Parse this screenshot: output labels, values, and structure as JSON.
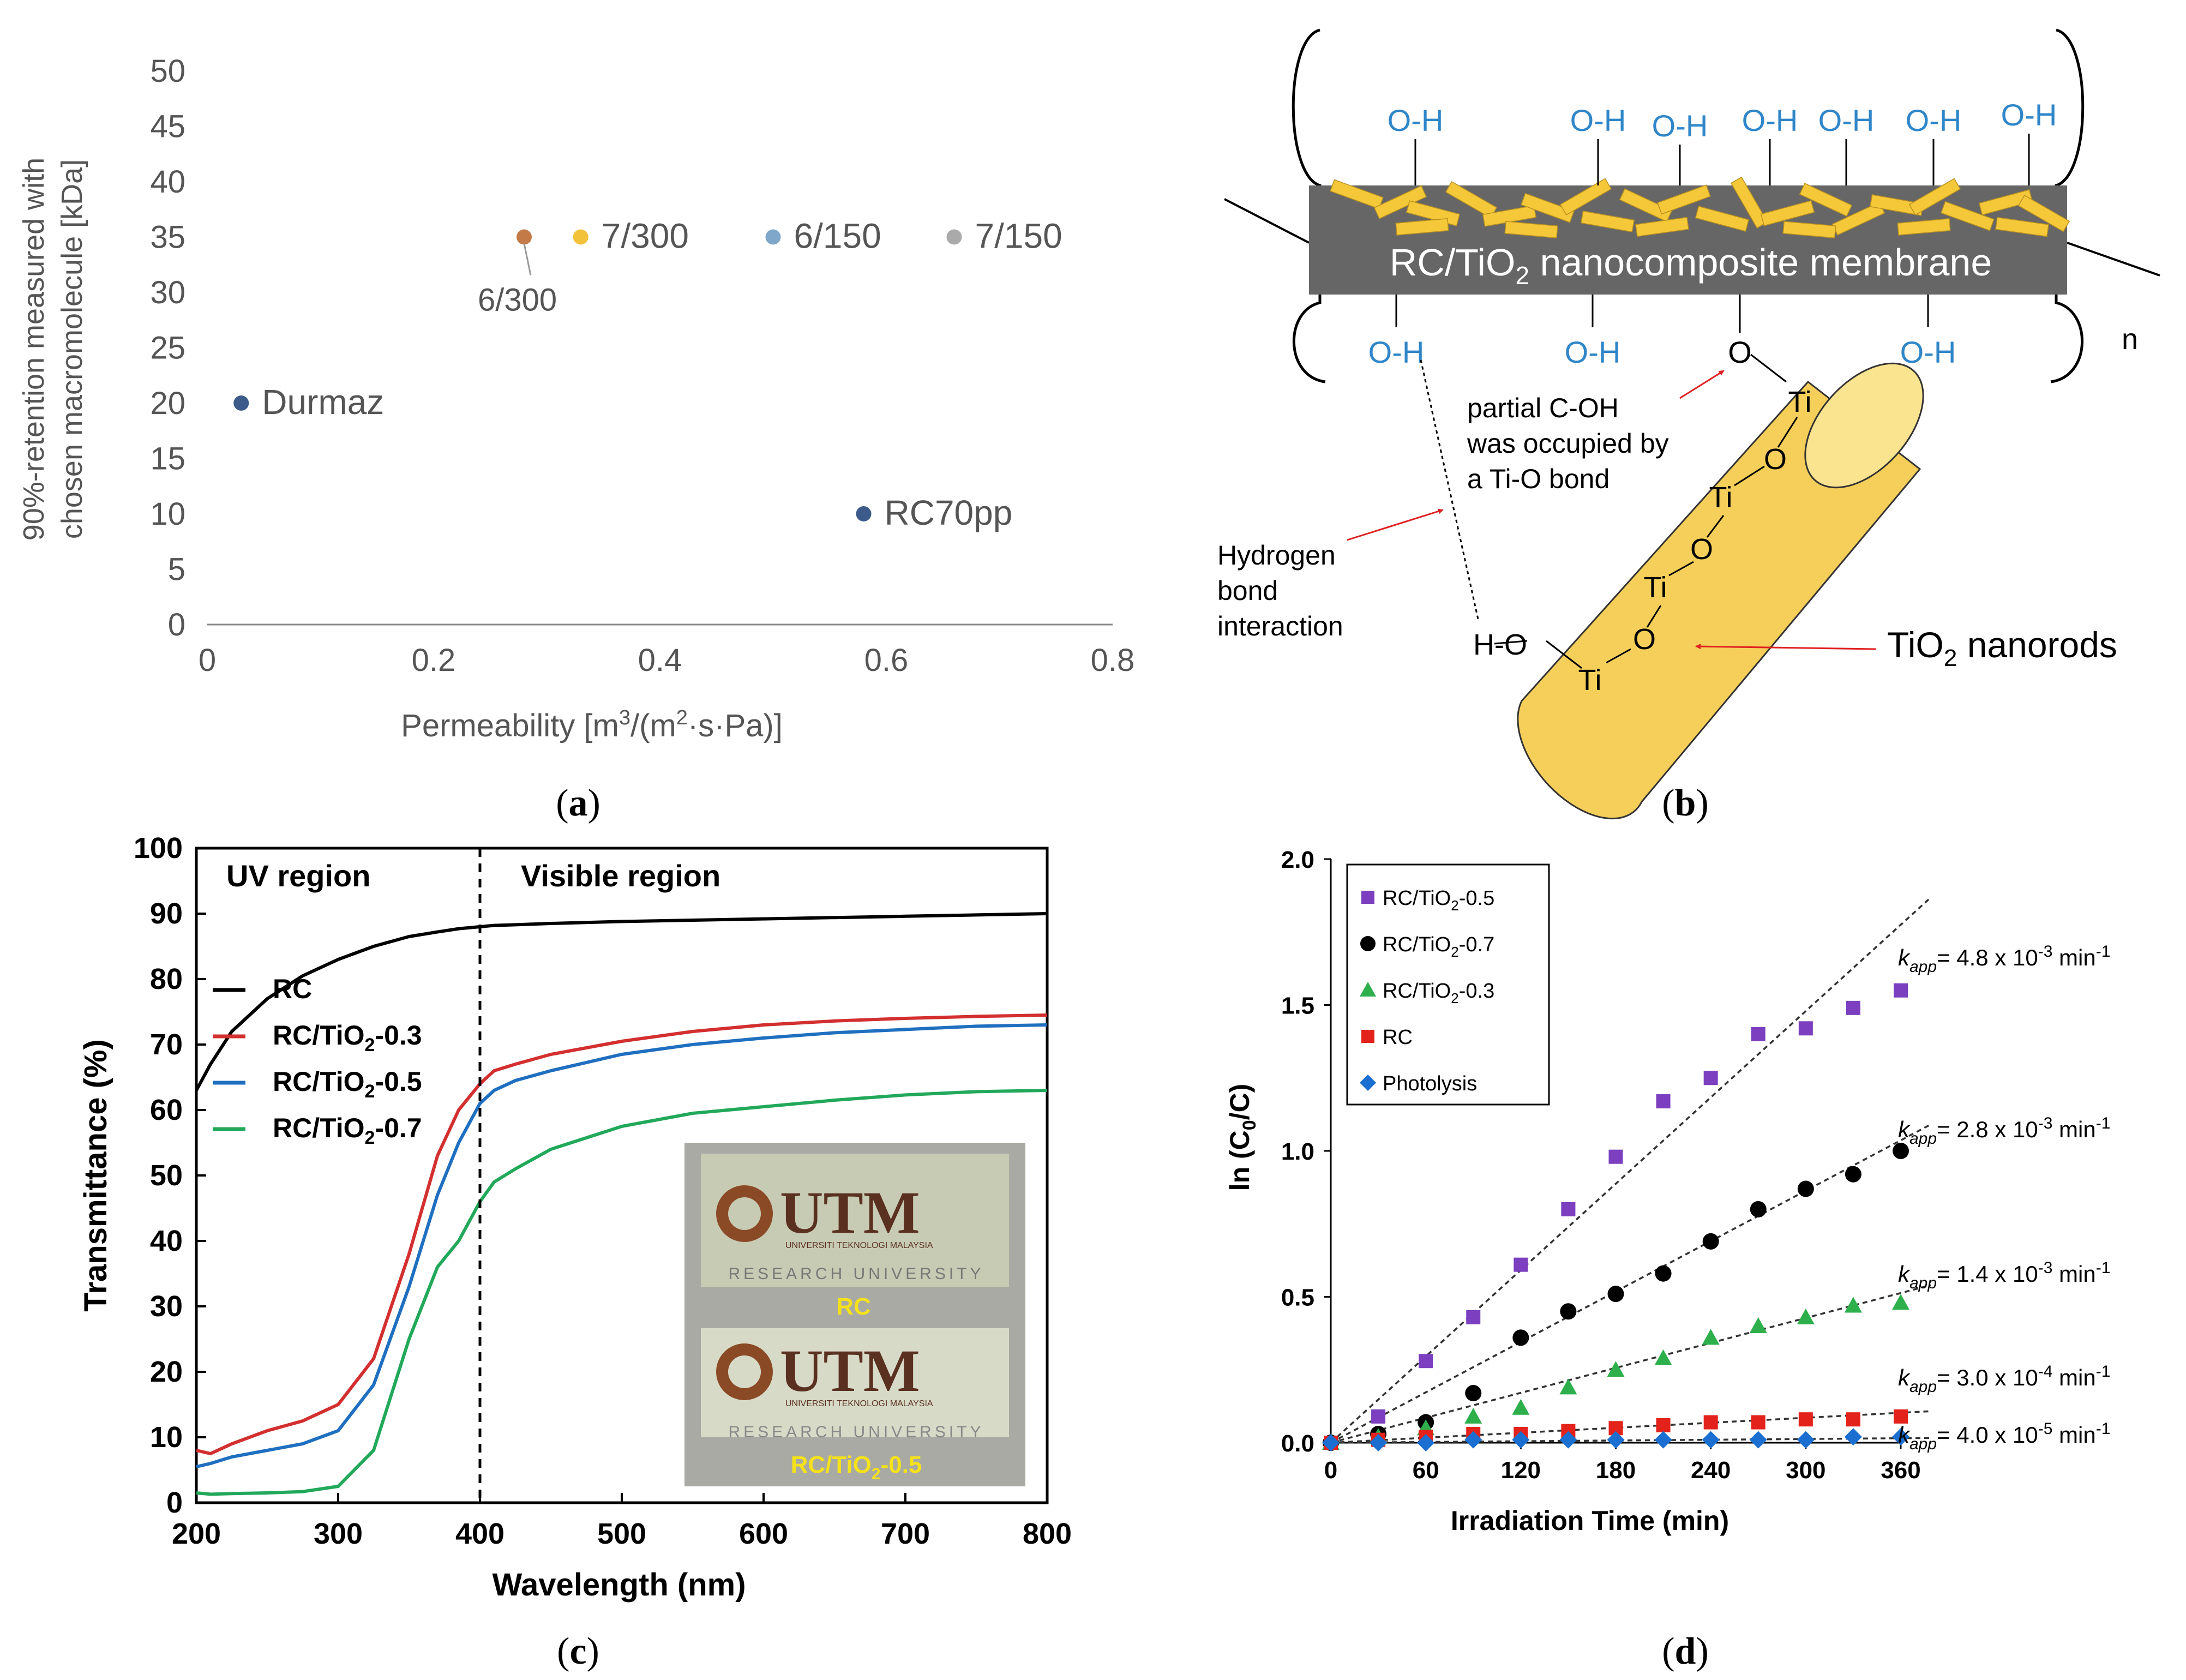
{
  "colors": {
    "brown": "#c47a47",
    "gold": "#f2c23a",
    "lightblue": "#7ea7c9",
    "gray": "#aaaaaa",
    "navy": "#3c5a8a",
    "rc": "#000000",
    "red": "#d32f2f",
    "blue": "#1f6fc0",
    "green": "#22a85a",
    "purple": "#7b3fbf",
    "sq_red": "#e3221b",
    "tri_green": "#2db04b",
    "diamond_blue": "#1a6fd0",
    "membrane": "#666666",
    "rod": "#f5cf5a",
    "oh": "#2f86c8",
    "arrow": "#e02020"
  },
  "panels": {
    "a": {
      "label": "a"
    },
    "b": {
      "label": "b"
    },
    "c": {
      "label": "c"
    },
    "d": {
      "label": "d"
    }
  },
  "chart_data": [
    {
      "panel": "a",
      "type": "scatter",
      "title": "",
      "xlabel_pre": "Permeability [m",
      "xlabel_sup1": "3",
      "xlabel_mid": "/(m",
      "xlabel_sup2": "2",
      "xlabel_post": "·s·Pa)]",
      "ylabel_line1": "90%-retention measured with",
      "ylabel_line2": "chosen macromolecule [kDa]",
      "xlim": [
        0,
        0.8
      ],
      "ylim": [
        0,
        50
      ],
      "xticks": [
        0,
        0.2,
        0.4,
        0.6,
        0.8
      ],
      "xtick_labels": [
        "0",
        "0.2",
        "0.4",
        "0.6",
        "0.8"
      ],
      "yticks": [
        0,
        5,
        10,
        15,
        20,
        25,
        30,
        35,
        40,
        45,
        50
      ],
      "ytick_labels": [
        "0",
        "5",
        "10",
        "15",
        "20",
        "25",
        "30",
        "35",
        "40",
        "45",
        "50"
      ],
      "points": [
        {
          "name": "Durmaz",
          "x": 0.03,
          "y": 20,
          "color": "#3c5a8a"
        },
        {
          "name": "RC70pp",
          "x": 0.58,
          "y": 10,
          "color": "#3c5a8a"
        },
        {
          "name": "6/300",
          "x": 0.28,
          "y": 35,
          "color": "#c47a47"
        },
        {
          "name": "7/300",
          "x": 0.33,
          "y": 35,
          "color": "#f2c23a"
        },
        {
          "name": "6/150",
          "x": 0.5,
          "y": 35,
          "color": "#7ea7c9"
        },
        {
          "name": "7/150",
          "x": 0.66,
          "y": 35,
          "color": "#aaaaaa"
        }
      ]
    },
    {
      "panel": "c",
      "type": "line",
      "xlabel": "Wavelength (nm)",
      "ylabel": "Transmittance (%)",
      "xlim": [
        200,
        800
      ],
      "ylim": [
        0,
        100
      ],
      "xticks": [
        200,
        300,
        400,
        500,
        600,
        700,
        800
      ],
      "xtick_labels": [
        "200",
        "300",
        "400",
        "500",
        "600",
        "700",
        "800"
      ],
      "yticks": [
        0,
        10,
        20,
        30,
        40,
        50,
        60,
        70,
        80,
        90,
        100
      ],
      "ytick_labels": [
        "0",
        "10",
        "20",
        "30",
        "40",
        "50",
        "60",
        "70",
        "80",
        "90",
        "100"
      ],
      "divider_x": 400,
      "region_uv": "UV region",
      "region_visible": "Visible region",
      "x": [
        200,
        210,
        225,
        250,
        275,
        300,
        325,
        350,
        370,
        385,
        400,
        410,
        425,
        450,
        500,
        550,
        600,
        650,
        700,
        750,
        800
      ],
      "series": [
        {
          "name": "RC",
          "label_base": "RC",
          "label_sub": "",
          "label_tail": "",
          "color": "#000000",
          "values": [
            63,
            67,
            72,
            77,
            80.5,
            83,
            85,
            86.5,
            87.2,
            87.7,
            88,
            88.2,
            88.3,
            88.5,
            88.8,
            89,
            89.2,
            89.4,
            89.6,
            89.8,
            90
          ]
        },
        {
          "name": "RC/TiO2-0.3",
          "label_base": "RC/TiO",
          "label_sub": "2",
          "label_tail": "-0.3",
          "color": "#d32f2f",
          "values": [
            8,
            7.5,
            9,
            11,
            12.5,
            15,
            22,
            38,
            53,
            60,
            64,
            66,
            67,
            68.5,
            70.5,
            72,
            73,
            73.6,
            74,
            74.3,
            74.5
          ]
        },
        {
          "name": "RC/TiO2-0.5",
          "label_base": "RC/TiO",
          "label_sub": "2",
          "label_tail": "-0.5",
          "color": "#1f6fc0",
          "values": [
            5.5,
            6,
            7,
            8,
            9,
            11,
            18,
            33,
            47,
            55,
            61,
            63,
            64.5,
            66,
            68.5,
            70,
            71,
            71.8,
            72.3,
            72.8,
            73
          ]
        },
        {
          "name": "RC/TiO2-0.7",
          "label_base": "RC/TiO",
          "label_sub": "2",
          "label_tail": "-0.7",
          "color": "#22a85a",
          "values": [
            1.5,
            1.3,
            1.4,
            1.5,
            1.7,
            2.5,
            8,
            25,
            36,
            40,
            46,
            49,
            51,
            54,
            57.5,
            59.5,
            60.5,
            61.5,
            62.3,
            62.8,
            63
          ]
        }
      ],
      "inset": {
        "logo": "UTM",
        "small": "UNIVERSITI TEKNOLOGI MALAYSIA",
        "research": "RESEARCH UNIVERSITY",
        "caption1": "RC",
        "caption2_base": "RC/TiO",
        "caption2_sub": "2",
        "caption2_tail": "-0.5"
      }
    },
    {
      "panel": "d",
      "type": "scatter",
      "xlabel": "Irradiation Time (min)",
      "ylabel_pre": "ln (C",
      "ylabel_sub": "0",
      "ylabel_post": "/C)",
      "xlim": [
        0,
        360
      ],
      "ylim": [
        0,
        2.0
      ],
      "xticks": [
        0,
        60,
        120,
        180,
        240,
        300,
        360
      ],
      "xtick_labels": [
        "0",
        "60",
        "120",
        "180",
        "240",
        "300",
        "360"
      ],
      "yticks": [
        0,
        0.5,
        1.0,
        1.5,
        2.0
      ],
      "ytick_labels": [
        "0.0",
        "0.5",
        "1.0",
        "1.5",
        "2.0"
      ],
      "x": [
        0,
        30,
        60,
        90,
        120,
        150,
        180,
        210,
        240,
        270,
        300,
        330,
        360
      ],
      "series": [
        {
          "name": "RC/TiO2-0.5",
          "label_base": "RC/TiO",
          "label_sub": "2",
          "label_tail": "-0.5",
          "marker": "square",
          "color": "#7b3fbf",
          "values": [
            0,
            0.09,
            0.28,
            0.43,
            0.61,
            0.8,
            0.98,
            1.17,
            1.25,
            1.4,
            1.42,
            1.49,
            1.55
          ],
          "fit_end": 1.73,
          "k_mant": "4.8 x 10",
          "k_exp": "-3",
          "k_unit": " min",
          "k_unit_exp": "-1"
        },
        {
          "name": "RC/TiO2-0.7",
          "label_base": "RC/TiO",
          "label_sub": "2",
          "label_tail": "-0.7",
          "marker": "circle",
          "color": "#000000",
          "values": [
            0,
            0.03,
            0.07,
            0.17,
            0.36,
            0.45,
            0.51,
            0.58,
            0.69,
            0.8,
            0.87,
            0.92,
            1.0
          ],
          "fit_end": 1.01,
          "k_mant": "2.8 x 10",
          "k_exp": "-3",
          "k_unit": " min",
          "k_unit_exp": "-1"
        },
        {
          "name": "RC/TiO2-0.3",
          "label_base": "RC/TiO",
          "label_sub": "2",
          "label_tail": "-0.3",
          "marker": "triangle",
          "color": "#2db04b",
          "values": [
            0,
            0.02,
            0.05,
            0.09,
            0.12,
            0.19,
            0.25,
            0.29,
            0.36,
            0.4,
            0.43,
            0.47,
            0.48
          ],
          "fit_end": 0.5,
          "k_mant": "1.4 x 10",
          "k_exp": "-3",
          "k_unit": " min",
          "k_unit_exp": "-1"
        },
        {
          "name": "RC",
          "label_base": "RC",
          "label_sub": "",
          "label_tail": "",
          "marker": "square",
          "color": "#e3221b",
          "values": [
            0,
            0.01,
            0.02,
            0.03,
            0.03,
            0.04,
            0.05,
            0.06,
            0.07,
            0.07,
            0.08,
            0.08,
            0.09
          ],
          "fit_end": 0.1,
          "k_mant": "3.0 x 10",
          "k_exp": "-4",
          "k_unit": " min",
          "k_unit_exp": "-1"
        },
        {
          "name": "Photolysis",
          "label_base": "Photolysis",
          "label_sub": "",
          "label_tail": "",
          "marker": "diamond",
          "color": "#1a6fd0",
          "values": [
            0,
            0,
            0,
            0.01,
            0.01,
            0.01,
            0.01,
            0.01,
            0.01,
            0.01,
            0.01,
            0.02,
            0.02
          ],
          "fit_end": 0.015,
          "k_mant": "4.0 x 10",
          "k_exp": "-5",
          "k_unit": " min",
          "k_unit_exp": "-1"
        }
      ],
      "k_symbol": "k",
      "k_sub": "app"
    }
  ],
  "diagram_b": {
    "membrane_label_pre": "RC/TiO",
    "membrane_label_sub": "2",
    "membrane_label_post": " nanocomposite membrane",
    "oh": "O-H",
    "o": "O",
    "n": "n",
    "ti": "Ti",
    "ho": "H-O",
    "partial_1": "partial C-OH",
    "partial_2": "was occupied by",
    "partial_3": "a Ti-O bond",
    "hbond_1": "Hydrogen",
    "hbond_2": "bond",
    "hbond_3": "interaction",
    "nanorods_pre": "TiO",
    "nanorods_sub": "2",
    "nanorods_post": " nanorods"
  }
}
